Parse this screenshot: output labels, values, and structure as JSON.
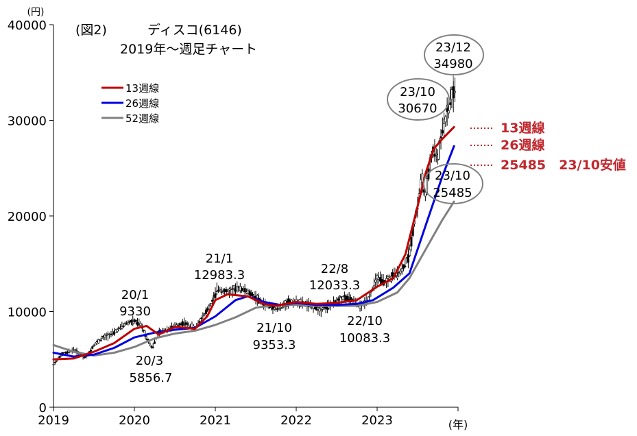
{
  "chart_data": {
    "type": "line",
    "figure_label": "(図2)",
    "title": "ディスコ(6146)",
    "subtitle": "2019年～週足チャート",
    "ylabel": "(円)",
    "xlabel": "(年)",
    "ylim": [
      0,
      40000
    ],
    "xlim": [
      2019.0,
      2024.0
    ],
    "y_ticks": [
      0,
      10000,
      20000,
      30000,
      40000
    ],
    "y_tick_labels": [
      "0",
      "10000",
      "20000",
      "30000",
      "40000"
    ],
    "x_ticks": [
      2019,
      2020,
      2021,
      2022,
      2023
    ],
    "x_tick_labels": [
      "2019",
      "2020",
      "2021",
      "2022",
      "2023"
    ],
    "grid": false,
    "legend_position": "upper-left",
    "series": [
      {
        "name": "13週線",
        "color": "#c00000",
        "x": [
          2019.0,
          2019.25,
          2019.5,
          2019.75,
          2020.0,
          2020.15,
          2020.3,
          2020.5,
          2020.75,
          2020.9,
          2021.0,
          2021.15,
          2021.4,
          2021.6,
          2021.75,
          2022.0,
          2022.25,
          2022.5,
          2022.75,
          2023.0,
          2023.2,
          2023.35,
          2023.5,
          2023.6,
          2023.7,
          2023.8,
          2023.95
        ],
        "values": [
          5000,
          5100,
          5800,
          6700,
          8200,
          8500,
          7600,
          8400,
          8200,
          9500,
          11200,
          11800,
          11600,
          10800,
          10600,
          11000,
          10800,
          10900,
          11200,
          12600,
          13500,
          16000,
          21000,
          24500,
          27000,
          28000,
          29300
        ]
      },
      {
        "name": "26週線",
        "color": "#0000e0",
        "x": [
          2019.0,
          2019.25,
          2019.5,
          2019.75,
          2020.0,
          2020.25,
          2020.5,
          2020.75,
          2021.0,
          2021.25,
          2021.4,
          2021.6,
          2021.8,
          2022.0,
          2022.25,
          2022.5,
          2022.75,
          2022.95,
          2023.2,
          2023.4,
          2023.5,
          2023.6,
          2023.7,
          2023.8,
          2023.95
        ],
        "values": [
          5700,
          5300,
          5500,
          6200,
          7300,
          7800,
          8100,
          8300,
          9500,
          11200,
          11600,
          11000,
          10700,
          10900,
          10700,
          10700,
          10800,
          11200,
          12500,
          14000,
          16500,
          19000,
          21500,
          24000,
          27300
        ]
      },
      {
        "name": "52週線",
        "color": "#808080",
        "x": [
          2019.0,
          2019.25,
          2019.5,
          2019.75,
          2020.0,
          2020.25,
          2020.5,
          2020.75,
          2021.0,
          2021.25,
          2021.5,
          2021.75,
          2022.0,
          2022.25,
          2022.5,
          2022.75,
          2023.0,
          2023.25,
          2023.4,
          2023.5,
          2023.6,
          2023.7,
          2023.8,
          2023.95
        ],
        "values": [
          6500,
          5800,
          5400,
          5700,
          6300,
          7200,
          7700,
          8000,
          8600,
          9400,
          10400,
          10700,
          10700,
          10600,
          10600,
          10600,
          11000,
          12000,
          13500,
          15000,
          16500,
          18000,
          19500,
          21500
        ]
      }
    ],
    "price_bars": {
      "x": [
        2019.0,
        2019.1,
        2019.25,
        2019.4,
        2019.5,
        2019.6,
        2019.75,
        2019.9,
        2020.0,
        2020.08,
        2020.17,
        2020.22,
        2020.3,
        2020.45,
        2020.6,
        2020.75,
        2020.85,
        2020.95,
        2021.03,
        2021.15,
        2021.3,
        2021.45,
        2021.6,
        2021.78,
        2021.9,
        2022.0,
        2022.15,
        2022.3,
        2022.45,
        2022.6,
        2022.72,
        2022.8,
        2022.9,
        2023.0,
        2023.1,
        2023.2,
        2023.3,
        2023.4,
        2023.45,
        2023.5,
        2023.55,
        2023.6,
        2023.65,
        2023.7,
        2023.75,
        2023.8,
        2023.85,
        2023.9,
        2023.95
      ],
      "values": [
        4500,
        5500,
        6000,
        5200,
        6500,
        7200,
        7800,
        8800,
        9000,
        8600,
        7000,
        6200,
        7800,
        8300,
        8800,
        8300,
        9500,
        10800,
        12400,
        12000,
        12500,
        11800,
        10800,
        10300,
        11000,
        11000,
        10700,
        10200,
        10800,
        11500,
        11000,
        10500,
        11500,
        13500,
        13000,
        13800,
        14200,
        16000,
        19000,
        21000,
        24000,
        22000,
        25500,
        27000,
        26000,
        29000,
        30000,
        32000,
        33000
      ]
    },
    "annotations": [
      {
        "date": "20/1",
        "value": "9330"
      },
      {
        "date": "20/3",
        "value": "5856.7"
      },
      {
        "date": "21/1",
        "value": "12983.3"
      },
      {
        "date": "21/10",
        "value": "9353.3"
      },
      {
        "date": "22/8",
        "value": "12033.3"
      },
      {
        "date": "22/10",
        "value": "10083.3"
      },
      {
        "date": "23/10",
        "value": "30670"
      },
      {
        "date": "23/12",
        "value": "34980"
      },
      {
        "date": "23/10",
        "value": "25485"
      }
    ],
    "side_notes": [
      {
        "text": "13週線",
        "color": "#c0272d"
      },
      {
        "text": "26週線",
        "color": "#c0272d"
      },
      {
        "text": "25485　23/10安値",
        "color": "#c0272d"
      }
    ]
  }
}
